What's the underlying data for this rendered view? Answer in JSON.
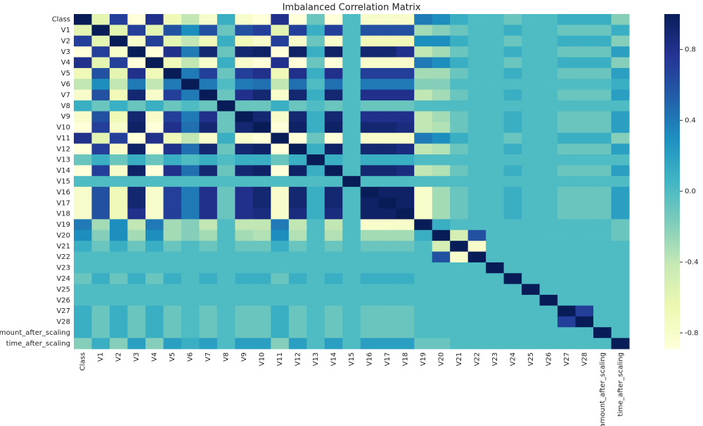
{
  "chart_data": {
    "type": "heatmap",
    "title": "Imbalanced Correlation Matrix",
    "categories": [
      "Class",
      "V1",
      "V2",
      "V3",
      "V4",
      "V5",
      "V6",
      "V7",
      "V8",
      "V9",
      "V10",
      "V11",
      "V12",
      "V13",
      "V14",
      "V15",
      "V16",
      "V17",
      "V18",
      "V19",
      "V20",
      "V21",
      "V22",
      "V23",
      "V24",
      "V25",
      "V26",
      "V27",
      "V28",
      "amount_after_scaling",
      "time_after_scaling"
    ],
    "colormap": [
      "#ffffd9",
      "#edf8b1",
      "#c7e9b4",
      "#7fcdbb",
      "#41b6c4",
      "#1d91c0",
      "#225ea8",
      "#253494",
      "#081d58"
    ],
    "clim": [
      -0.89,
      1.0
    ],
    "cticks": [
      -0.8,
      -0.4,
      {
        "value": 0,
        "label": "0.0"
      },
      0.4,
      0.8
    ],
    "values": [
      [
        1,
        -0.6,
        0.7,
        -0.9,
        0.8,
        -0.7,
        -0.4,
        -0.8,
        0.1,
        -0.8,
        -0.9,
        0.8,
        -0.9,
        -0.1,
        -0.9,
        0,
        -0.8,
        -0.8,
        -0.8,
        0.4,
        0.3,
        0.1,
        0,
        0,
        -0.1,
        0,
        0,
        0.1,
        0.1,
        0.1,
        -0.2
      ],
      [
        -0.6,
        1,
        -0.6,
        0.7,
        -0.6,
        0.6,
        0.3,
        0.6,
        -0.1,
        0.6,
        0.7,
        -0.6,
        0.7,
        0.1,
        0.7,
        0,
        0.6,
        0.6,
        0.6,
        -0.3,
        -0.2,
        -0.1,
        0,
        0,
        0.1,
        0,
        0,
        -0.1,
        -0.1,
        -0.1,
        0.1
      ],
      [
        0.7,
        -0.6,
        1,
        -0.8,
        0.7,
        -0.6,
        -0.4,
        -0.7,
        0.1,
        -0.7,
        -0.8,
        0.7,
        -0.8,
        -0.1,
        -0.8,
        0,
        -0.7,
        -0.7,
        -0.7,
        0.3,
        0.3,
        0.1,
        0,
        0,
        -0.1,
        0,
        0,
        0.1,
        0.1,
        0.1,
        -0.2
      ],
      [
        -0.9,
        0.7,
        -0.8,
        1,
        -0.9,
        0.8,
        0.4,
        0.9,
        -0.1,
        0.9,
        0.95,
        -0.9,
        0.95,
        0.1,
        0.95,
        0,
        0.9,
        0.9,
        0.8,
        -0.4,
        -0.3,
        -0.1,
        0,
        0,
        0.1,
        0,
        0,
        -0.1,
        -0.1,
        -0.1,
        0.2
      ],
      [
        0.8,
        -0.6,
        0.7,
        -0.9,
        1,
        -0.7,
        -0.4,
        -0.8,
        0.1,
        -0.8,
        -0.9,
        0.8,
        -0.9,
        -0.1,
        -0.9,
        0,
        -0.8,
        -0.8,
        -0.8,
        0.4,
        0.3,
        0.1,
        0,
        0,
        -0.1,
        0,
        0,
        0.1,
        0.1,
        0.1,
        -0.2
      ],
      [
        -0.7,
        0.6,
        -0.6,
        0.8,
        -0.7,
        1,
        0.4,
        0.7,
        -0.1,
        0.7,
        0.8,
        -0.7,
        0.8,
        0.1,
        0.8,
        0,
        0.7,
        0.7,
        0.7,
        -0.3,
        -0.3,
        -0.1,
        0,
        0,
        0.1,
        0,
        0,
        -0.1,
        -0.1,
        -0.1,
        0.2
      ],
      [
        -0.4,
        0.3,
        -0.4,
        0.4,
        -0.4,
        0.4,
        1,
        0.4,
        0,
        0.4,
        0.45,
        -0.4,
        0.45,
        0,
        0.45,
        0,
        0.4,
        0.4,
        0.4,
        -0.2,
        -0.2,
        0,
        0,
        0,
        0,
        0,
        0,
        0,
        0,
        0,
        0.1
      ],
      [
        -0.8,
        0.6,
        -0.7,
        0.9,
        -0.8,
        0.7,
        0.4,
        1,
        -0.1,
        0.8,
        0.9,
        -0.8,
        0.9,
        0.1,
        0.9,
        0,
        0.8,
        0.8,
        0.8,
        -0.4,
        -0.3,
        -0.1,
        0,
        0,
        0.1,
        0,
        0,
        -0.1,
        -0.1,
        -0.1,
        0.2
      ],
      [
        0.1,
        -0.1,
        0.1,
        -0.1,
        0.1,
        -0.1,
        0,
        -0.1,
        1,
        -0.1,
        -0.1,
        0.1,
        -0.1,
        0,
        -0.1,
        0,
        -0.1,
        -0.1,
        -0.1,
        0,
        0,
        0,
        0,
        0,
        0,
        0,
        0,
        0,
        0,
        0,
        0
      ],
      [
        -0.8,
        0.6,
        -0.7,
        0.9,
        -0.8,
        0.7,
        0.4,
        0.8,
        -0.1,
        1,
        0.9,
        -0.8,
        0.9,
        0.1,
        0.9,
        0,
        0.8,
        0.8,
        0.8,
        -0.4,
        -0.3,
        -0.1,
        0,
        0,
        0.1,
        0,
        0,
        -0.1,
        -0.1,
        -0.1,
        0.2
      ],
      [
        -0.9,
        0.7,
        -0.8,
        0.95,
        -0.9,
        0.8,
        0.45,
        0.9,
        -0.1,
        0.9,
        1,
        -0.9,
        0.95,
        0.1,
        0.95,
        0,
        0.9,
        0.9,
        0.85,
        -0.4,
        -0.35,
        -0.1,
        0,
        0,
        0.1,
        0,
        0,
        -0.1,
        -0.1,
        -0.1,
        0.2
      ],
      [
        0.8,
        -0.6,
        0.7,
        -0.9,
        0.8,
        -0.7,
        -0.4,
        -0.8,
        0.1,
        -0.8,
        -0.9,
        1,
        -0.9,
        -0.1,
        -0.9,
        0,
        -0.8,
        -0.8,
        -0.8,
        0.4,
        0.3,
        0.1,
        0,
        0,
        -0.1,
        0,
        0,
        0.1,
        0.1,
        0.1,
        -0.2
      ],
      [
        -0.9,
        0.7,
        -0.8,
        0.95,
        -0.9,
        0.8,
        0.45,
        0.9,
        -0.1,
        0.9,
        0.95,
        -0.9,
        1,
        0.1,
        0.95,
        0,
        0.9,
        0.9,
        0.85,
        -0.4,
        -0.35,
        -0.1,
        0,
        0,
        0.1,
        0,
        0,
        -0.1,
        -0.1,
        -0.1,
        0.2
      ],
      [
        -0.1,
        0.1,
        -0.1,
        0.1,
        -0.1,
        0.1,
        0,
        0.1,
        0,
        0.1,
        0.1,
        -0.1,
        0.1,
        1,
        0.1,
        0,
        0.1,
        0.1,
        0.1,
        0,
        0,
        0,
        0,
        0,
        0,
        0,
        0,
        0,
        0,
        0,
        0
      ],
      [
        -0.9,
        0.7,
        -0.8,
        0.95,
        -0.9,
        0.8,
        0.45,
        0.9,
        -0.1,
        0.9,
        0.95,
        -0.9,
        0.95,
        0.1,
        1,
        0,
        0.9,
        0.9,
        0.85,
        -0.4,
        -0.35,
        -0.1,
        0,
        0,
        0.1,
        0,
        0,
        -0.1,
        -0.1,
        -0.1,
        0.2
      ],
      [
        0,
        0,
        0,
        0,
        0,
        0,
        0,
        0,
        0,
        0,
        0,
        0,
        0,
        0,
        0,
        1,
        0,
        0,
        0,
        0,
        0,
        0,
        0,
        0,
        0,
        0,
        0,
        0,
        0,
        0,
        0
      ],
      [
        -0.8,
        0.6,
        -0.7,
        0.9,
        -0.8,
        0.7,
        0.4,
        0.8,
        -0.1,
        0.8,
        0.9,
        -0.8,
        0.9,
        0.1,
        0.9,
        0,
        1,
        0.95,
        0.95,
        -0.8,
        -0.3,
        -0.1,
        0,
        0,
        0.1,
        0,
        0,
        -0.1,
        -0.1,
        -0.1,
        0.2
      ],
      [
        -0.8,
        0.6,
        -0.7,
        0.9,
        -0.8,
        0.7,
        0.4,
        0.8,
        -0.1,
        0.8,
        0.9,
        -0.8,
        0.9,
        0.1,
        0.9,
        0,
        0.95,
        1,
        0.95,
        -0.8,
        -0.3,
        -0.1,
        0,
        0,
        0.1,
        0,
        0,
        -0.1,
        -0.1,
        -0.1,
        0.2
      ],
      [
        -0.8,
        0.6,
        -0.7,
        0.8,
        -0.8,
        0.7,
        0.4,
        0.8,
        -0.1,
        0.8,
        0.85,
        -0.8,
        0.85,
        0.1,
        0.85,
        0,
        0.95,
        0.95,
        1,
        -0.8,
        -0.3,
        -0.1,
        0,
        0,
        0.1,
        0,
        0,
        -0.1,
        -0.1,
        -0.1,
        0.2
      ],
      [
        0.4,
        -0.3,
        0.3,
        -0.4,
        0.4,
        -0.3,
        -0.2,
        -0.4,
        0,
        -0.4,
        -0.4,
        0.4,
        -0.4,
        0,
        -0.4,
        0,
        -0.8,
        -0.8,
        -0.8,
        1,
        0.1,
        0,
        0,
        0,
        0,
        0,
        0,
        0,
        0,
        0,
        -0.1
      ],
      [
        0.3,
        -0.2,
        0.3,
        -0.3,
        0.3,
        -0.3,
        -0.2,
        -0.3,
        0,
        -0.3,
        -0.35,
        0.3,
        -0.35,
        0,
        -0.35,
        0,
        -0.3,
        -0.3,
        -0.3,
        0.1,
        1,
        -0.5,
        0.6,
        0,
        0,
        0,
        0,
        0,
        0,
        0,
        -0.1
      ],
      [
        0.1,
        -0.1,
        0.1,
        -0.1,
        0.1,
        -0.1,
        0,
        -0.1,
        0,
        -0.1,
        -0.1,
        0.1,
        -0.1,
        0,
        -0.1,
        0,
        -0.1,
        -0.1,
        -0.1,
        0,
        -0.5,
        1,
        -0.8,
        0,
        0,
        0,
        0,
        0,
        0,
        0,
        0
      ],
      [
        0,
        0,
        0,
        0,
        0,
        0,
        0,
        0,
        0,
        0,
        0,
        0,
        0,
        0,
        0,
        0,
        0,
        0,
        0,
        0,
        0.6,
        -0.8,
        1,
        0,
        0,
        0,
        0,
        0,
        0,
        0,
        0
      ],
      [
        0,
        0,
        0,
        0,
        0,
        0,
        0,
        0,
        0,
        0,
        0,
        0,
        0,
        0,
        0,
        0,
        0,
        0,
        0,
        0,
        0,
        0,
        0,
        1,
        0,
        0,
        0,
        0,
        0,
        0,
        0
      ],
      [
        -0.1,
        0.1,
        -0.1,
        0.1,
        -0.1,
        0.1,
        0,
        0.1,
        0,
        0.1,
        0.1,
        -0.1,
        0.1,
        0,
        0.1,
        0,
        0.1,
        0.1,
        0.1,
        0,
        0,
        0,
        0,
        0,
        1,
        0,
        0,
        0,
        0,
        0,
        0
      ],
      [
        0,
        0,
        0,
        0,
        0,
        0,
        0,
        0,
        0,
        0,
        0,
        0,
        0,
        0,
        0,
        0,
        0,
        0,
        0,
        0,
        0,
        0,
        0,
        0,
        0,
        1,
        0,
        0,
        0,
        0,
        0
      ],
      [
        0,
        0,
        0,
        0,
        0,
        0,
        0,
        0,
        0,
        0,
        0,
        0,
        0,
        0,
        0,
        0,
        0,
        0,
        0,
        0,
        0,
        0,
        0,
        0,
        0,
        0,
        1,
        0,
        0,
        0,
        0
      ],
      [
        0.1,
        -0.1,
        0.1,
        -0.1,
        0.1,
        -0.1,
        0,
        -0.1,
        0,
        -0.1,
        -0.1,
        0.1,
        -0.1,
        0,
        -0.1,
        0,
        -0.1,
        -0.1,
        -0.1,
        0,
        0,
        0,
        0,
        0,
        0,
        0,
        0,
        1,
        0.7,
        0,
        0
      ],
      [
        0.1,
        -0.1,
        0.1,
        -0.1,
        0.1,
        -0.1,
        0,
        -0.1,
        0,
        -0.1,
        -0.1,
        0.1,
        -0.1,
        0,
        -0.1,
        0,
        -0.1,
        -0.1,
        -0.1,
        0,
        0,
        0,
        0,
        0,
        0,
        0,
        0,
        0.7,
        1,
        0,
        0
      ],
      [
        0.1,
        -0.1,
        0.1,
        -0.1,
        0.1,
        -0.1,
        0,
        -0.1,
        0,
        -0.1,
        -0.1,
        0.1,
        -0.1,
        0,
        -0.1,
        0,
        -0.1,
        -0.1,
        -0.1,
        0,
        0,
        0,
        0,
        0,
        0,
        0,
        0,
        0,
        0,
        1,
        0
      ],
      [
        -0.2,
        0.1,
        -0.2,
        0.2,
        -0.2,
        0.2,
        0.1,
        0.2,
        0,
        0.2,
        0.2,
        -0.2,
        0.2,
        0,
        0.2,
        0,
        0.2,
        0.2,
        0.2,
        -0.1,
        -0.1,
        0,
        0,
        0,
        0,
        0,
        0,
        0,
        0,
        0,
        1
      ]
    ]
  }
}
